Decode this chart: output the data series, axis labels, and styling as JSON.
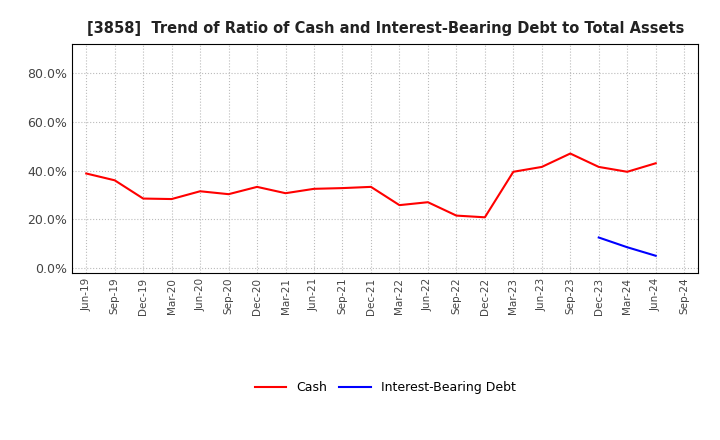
{
  "title": "[3858]  Trend of Ratio of Cash and Interest-Bearing Debt to Total Assets",
  "cash_dates": [
    "Jun-19",
    "Sep-19",
    "Dec-19",
    "Mar-20",
    "Jun-20",
    "Sep-20",
    "Dec-20",
    "Mar-21",
    "Jun-21",
    "Sep-21",
    "Dec-21",
    "Mar-22",
    "Jun-22",
    "Sep-22",
    "Dec-22",
    "Mar-23",
    "Jun-23",
    "Sep-23",
    "Dec-23",
    "Mar-24",
    "Jun-24"
  ],
  "cash_values": [
    0.388,
    0.36,
    0.285,
    0.283,
    0.315,
    0.303,
    0.333,
    0.307,
    0.325,
    0.328,
    0.333,
    0.258,
    0.27,
    0.215,
    0.208,
    0.395,
    0.415,
    0.47,
    0.415,
    0.395,
    0.43
  ],
  "debt_dates": [
    "Dec-23",
    "Mar-24",
    "Jun-24"
  ],
  "debt_values": [
    0.125,
    0.085,
    0.05
  ],
  "cash_color": "#FF0000",
  "debt_color": "#0000FF",
  "yticks": [
    0.0,
    0.2,
    0.4,
    0.6,
    0.8
  ],
  "ylim": [
    -0.02,
    0.92
  ],
  "xticks": [
    "Jun-19",
    "Sep-19",
    "Dec-19",
    "Mar-20",
    "Jun-20",
    "Sep-20",
    "Dec-20",
    "Mar-21",
    "Jun-21",
    "Sep-21",
    "Dec-21",
    "Mar-22",
    "Jun-22",
    "Sep-22",
    "Dec-22",
    "Mar-23",
    "Jun-23",
    "Sep-23",
    "Dec-23",
    "Mar-24",
    "Jun-24",
    "Sep-24"
  ],
  "background_color": "#FFFFFF",
  "grid_color": "#AAAAAA",
  "legend_cash": "Cash",
  "legend_debt": "Interest-Bearing Debt"
}
